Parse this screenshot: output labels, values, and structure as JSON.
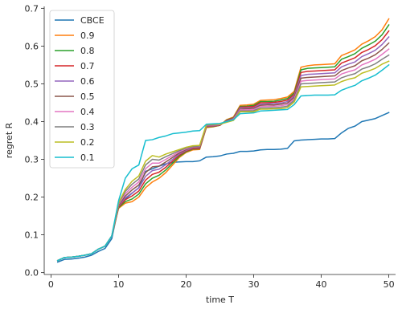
{
  "chart_data": {
    "type": "line",
    "title": "",
    "xlabel": "time T",
    "ylabel": "regret R",
    "xlim": [
      -1,
      51
    ],
    "ylim": [
      -0.005,
      0.705
    ],
    "xticks": [
      0,
      10,
      20,
      30,
      40,
      50
    ],
    "yticks": [
      0.0,
      0.1,
      0.2,
      0.3,
      0.4,
      0.5,
      0.6,
      0.7
    ],
    "ytick_labels": [
      "0.0",
      "0.1",
      "0.2",
      "0.3",
      "0.4",
      "0.5",
      "0.6",
      "0.7"
    ],
    "grid": false,
    "legend_position": "upper-left",
    "x": [
      1,
      2,
      3,
      4,
      5,
      6,
      7,
      8,
      9,
      10,
      11,
      12,
      13,
      14,
      15,
      16,
      17,
      18,
      19,
      20,
      21,
      22,
      23,
      24,
      25,
      26,
      27,
      28,
      29,
      30,
      31,
      32,
      33,
      34,
      35,
      36,
      37,
      38,
      39,
      40,
      41,
      42,
      43,
      44,
      45,
      46,
      47,
      48,
      49,
      50
    ],
    "series": [
      {
        "name": "CBCE",
        "color": "#1f77b4",
        "values": [
          0.028,
          0.035,
          0.036,
          0.038,
          0.041,
          0.046,
          0.056,
          0.064,
          0.09,
          0.175,
          0.195,
          0.21,
          0.225,
          0.268,
          0.275,
          0.282,
          0.288,
          0.292,
          0.293,
          0.294,
          0.294,
          0.296,
          0.306,
          0.307,
          0.309,
          0.314,
          0.316,
          0.321,
          0.321,
          0.322,
          0.325,
          0.326,
          0.326,
          0.327,
          0.329,
          0.349,
          0.351,
          0.352,
          0.353,
          0.354,
          0.354,
          0.355,
          0.37,
          0.382,
          0.388,
          0.4,
          0.404,
          0.408,
          0.416,
          0.424
        ]
      },
      {
        "name": "0.9",
        "color": "#ff7f0e",
        "values": [
          0.032,
          0.04,
          0.041,
          0.043,
          0.046,
          0.05,
          0.062,
          0.07,
          0.097,
          0.17,
          0.184,
          0.188,
          0.2,
          0.225,
          0.24,
          0.25,
          0.265,
          0.285,
          0.305,
          0.318,
          0.325,
          0.326,
          0.384,
          0.386,
          0.39,
          0.405,
          0.412,
          0.443,
          0.444,
          0.446,
          0.456,
          0.457,
          0.458,
          0.461,
          0.465,
          0.48,
          0.544,
          0.548,
          0.55,
          0.551,
          0.552,
          0.553,
          0.575,
          0.582,
          0.59,
          0.605,
          0.614,
          0.625,
          0.643,
          0.672
        ]
      },
      {
        "name": "0.8",
        "color": "#2ca02c",
        "values": [
          0.032,
          0.04,
          0.041,
          0.043,
          0.046,
          0.05,
          0.062,
          0.07,
          0.097,
          0.172,
          0.188,
          0.195,
          0.208,
          0.235,
          0.25,
          0.258,
          0.272,
          0.29,
          0.308,
          0.32,
          0.327,
          0.328,
          0.386,
          0.387,
          0.39,
          0.404,
          0.41,
          0.44,
          0.441,
          0.443,
          0.453,
          0.453,
          0.454,
          0.457,
          0.461,
          0.476,
          0.537,
          0.541,
          0.542,
          0.543,
          0.544,
          0.545,
          0.565,
          0.572,
          0.58,
          0.594,
          0.603,
          0.613,
          0.63,
          0.656
        ]
      },
      {
        "name": "0.7",
        "color": "#d62728",
        "values": [
          0.032,
          0.04,
          0.041,
          0.043,
          0.046,
          0.05,
          0.062,
          0.07,
          0.097,
          0.174,
          0.193,
          0.203,
          0.216,
          0.245,
          0.26,
          0.266,
          0.279,
          0.295,
          0.311,
          0.322,
          0.328,
          0.329,
          0.387,
          0.388,
          0.39,
          0.403,
          0.409,
          0.438,
          0.439,
          0.44,
          0.45,
          0.45,
          0.451,
          0.453,
          0.457,
          0.472,
          0.53,
          0.533,
          0.534,
          0.535,
          0.536,
          0.537,
          0.555,
          0.562,
          0.569,
          0.583,
          0.591,
          0.601,
          0.617,
          0.64
        ]
      },
      {
        "name": "0.6",
        "color": "#9467bd",
        "values": [
          0.032,
          0.04,
          0.041,
          0.043,
          0.046,
          0.05,
          0.062,
          0.07,
          0.097,
          0.176,
          0.198,
          0.211,
          0.224,
          0.255,
          0.27,
          0.274,
          0.286,
          0.3,
          0.314,
          0.324,
          0.33,
          0.331,
          0.388,
          0.389,
          0.391,
          0.402,
          0.408,
          0.436,
          0.436,
          0.437,
          0.446,
          0.447,
          0.448,
          0.449,
          0.453,
          0.468,
          0.522,
          0.525,
          0.526,
          0.527,
          0.528,
          0.529,
          0.545,
          0.552,
          0.558,
          0.572,
          0.58,
          0.589,
          0.604,
          0.624
        ]
      },
      {
        "name": "0.5",
        "color": "#8c564b",
        "values": [
          0.032,
          0.04,
          0.041,
          0.043,
          0.046,
          0.05,
          0.062,
          0.07,
          0.097,
          0.178,
          0.203,
          0.219,
          0.232,
          0.265,
          0.28,
          0.282,
          0.293,
          0.305,
          0.317,
          0.326,
          0.331,
          0.332,
          0.389,
          0.39,
          0.391,
          0.401,
          0.407,
          0.433,
          0.434,
          0.435,
          0.443,
          0.444,
          0.444,
          0.446,
          0.449,
          0.464,
          0.515,
          0.517,
          0.518,
          0.519,
          0.52,
          0.521,
          0.535,
          0.542,
          0.548,
          0.561,
          0.568,
          0.577,
          0.591,
          0.608
        ]
      },
      {
        "name": "0.4",
        "color": "#e377c2",
        "values": [
          0.032,
          0.04,
          0.041,
          0.043,
          0.046,
          0.05,
          0.062,
          0.07,
          0.097,
          0.181,
          0.209,
          0.226,
          0.24,
          0.275,
          0.29,
          0.29,
          0.3,
          0.31,
          0.32,
          0.328,
          0.333,
          0.334,
          0.39,
          0.391,
          0.392,
          0.4,
          0.406,
          0.431,
          0.431,
          0.432,
          0.44,
          0.44,
          0.441,
          0.442,
          0.445,
          0.46,
          0.507,
          0.509,
          0.51,
          0.511,
          0.512,
          0.513,
          0.526,
          0.532,
          0.537,
          0.55,
          0.557,
          0.565,
          0.578,
          0.592
        ]
      },
      {
        "name": "0.3",
        "color": "#7f7f7f",
        "values": [
          0.032,
          0.04,
          0.041,
          0.043,
          0.046,
          0.05,
          0.062,
          0.07,
          0.097,
          0.183,
          0.215,
          0.234,
          0.248,
          0.285,
          0.3,
          0.298,
          0.307,
          0.315,
          0.323,
          0.33,
          0.334,
          0.335,
          0.391,
          0.392,
          0.393,
          0.399,
          0.404,
          0.428,
          0.428,
          0.429,
          0.436,
          0.436,
          0.437,
          0.438,
          0.441,
          0.456,
          0.5,
          0.501,
          0.502,
          0.503,
          0.504,
          0.505,
          0.516,
          0.522,
          0.527,
          0.539,
          0.545,
          0.553,
          0.565,
          0.576
        ]
      },
      {
        "name": "0.2",
        "color": "#bcbd22",
        "values": [
          0.032,
          0.04,
          0.041,
          0.043,
          0.046,
          0.05,
          0.062,
          0.07,
          0.097,
          0.185,
          0.22,
          0.242,
          0.256,
          0.295,
          0.31,
          0.306,
          0.314,
          0.32,
          0.326,
          0.332,
          0.336,
          0.337,
          0.392,
          0.393,
          0.393,
          0.398,
          0.403,
          0.426,
          0.426,
          0.426,
          0.433,
          0.433,
          0.434,
          0.434,
          0.437,
          0.452,
          0.492,
          0.493,
          0.494,
          0.495,
          0.496,
          0.497,
          0.506,
          0.512,
          0.516,
          0.528,
          0.534,
          0.541,
          0.552,
          0.56
        ]
      },
      {
        "name": "0.1",
        "color": "#17becf",
        "values": [
          0.032,
          0.04,
          0.041,
          0.043,
          0.046,
          0.05,
          0.062,
          0.07,
          0.097,
          0.19,
          0.25,
          0.275,
          0.285,
          0.35,
          0.352,
          0.358,
          0.362,
          0.368,
          0.37,
          0.372,
          0.375,
          0.376,
          0.393,
          0.394,
          0.395,
          0.4,
          0.405,
          0.421,
          0.422,
          0.423,
          0.428,
          0.429,
          0.43,
          0.431,
          0.432,
          0.445,
          0.468,
          0.469,
          0.47,
          0.47,
          0.47,
          0.471,
          0.483,
          0.49,
          0.496,
          0.508,
          0.515,
          0.523,
          0.536,
          0.55
        ]
      }
    ]
  }
}
